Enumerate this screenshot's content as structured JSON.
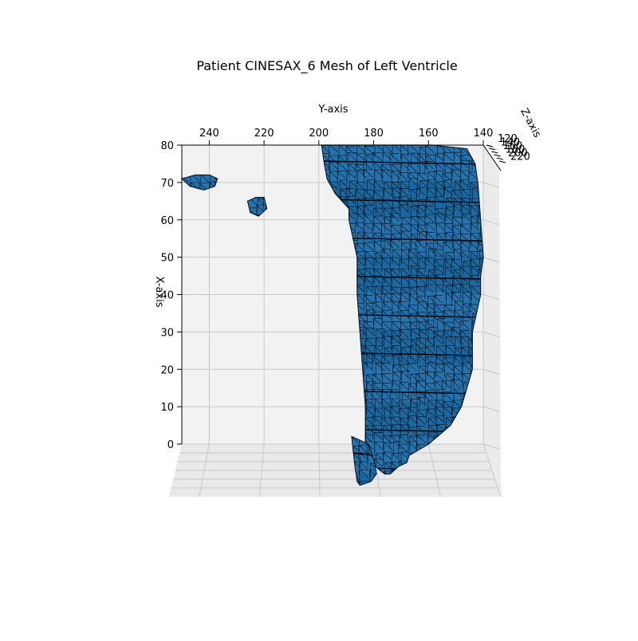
{
  "chart_data": {
    "type": "surface3d",
    "title": "Patient CINESAX_6 Mesh of Left Ventricle",
    "xlabel": "X-axis",
    "ylabel": "Y-axis",
    "zlabel": "Z-axis",
    "xlim": [
      0,
      80
    ],
    "ylim": [
      140,
      250
    ],
    "zlim": [
      120,
      220
    ],
    "x_ticks": [
      0,
      10,
      20,
      30,
      40,
      50,
      60,
      70,
      80
    ],
    "y_ticks": [
      240,
      220,
      200,
      180,
      160,
      140
    ],
    "z_ticks": [
      120,
      140,
      160,
      180,
      200,
      220
    ],
    "grid": true,
    "pane_color": "#f2f2f2",
    "face_color": "#1f77b4",
    "edge_color": "#000000",
    "meshes": [
      {
        "name": "left-ventricle",
        "outline": [
          [
            80,
            191
          ],
          [
            80,
            159
          ],
          [
            79,
            146
          ],
          [
            75,
            143
          ],
          [
            70,
            142
          ],
          [
            60,
            141
          ],
          [
            50,
            140
          ],
          [
            45,
            141
          ],
          [
            40,
            141
          ],
          [
            30,
            144
          ],
          [
            20,
            144
          ],
          [
            10,
            148
          ],
          [
            5,
            152
          ],
          [
            0,
            160
          ],
          [
            -3,
            167
          ],
          [
            -5,
            168
          ],
          [
            -6,
            171
          ],
          [
            -8,
            174
          ],
          [
            -8,
            176
          ],
          [
            -5,
            181
          ],
          [
            0,
            183
          ],
          [
            10,
            183
          ],
          [
            20,
            184
          ],
          [
            30,
            185
          ],
          [
            40,
            186
          ],
          [
            50,
            186
          ],
          [
            60,
            189
          ],
          [
            63,
            189
          ],
          [
            67,
            194
          ],
          [
            71,
            197
          ],
          [
            75,
            198
          ],
          [
            80,
            199
          ]
        ]
      },
      {
        "name": "small-fragment-upper-left",
        "outline": [
          [
            71,
            250
          ],
          [
            72,
            245
          ],
          [
            72,
            240
          ],
          [
            71,
            237
          ],
          [
            69,
            238
          ],
          [
            68,
            242
          ],
          [
            69,
            247
          ],
          [
            71,
            250
          ]
        ]
      },
      {
        "name": "small-fragment-round",
        "outline": [
          [
            66,
            223
          ],
          [
            66,
            220
          ],
          [
            63,
            219
          ],
          [
            61,
            222
          ],
          [
            62,
            225
          ],
          [
            65,
            226
          ],
          [
            66,
            223
          ]
        ]
      },
      {
        "name": "small-fragment-bottom",
        "outline": [
          [
            2,
            188
          ],
          [
            -5,
            187
          ],
          [
            -10,
            186
          ],
          [
            -11,
            185
          ],
          [
            -10,
            181
          ],
          [
            -8,
            179
          ],
          [
            -4,
            180
          ],
          [
            0,
            182
          ],
          [
            2,
            188
          ]
        ]
      }
    ]
  }
}
